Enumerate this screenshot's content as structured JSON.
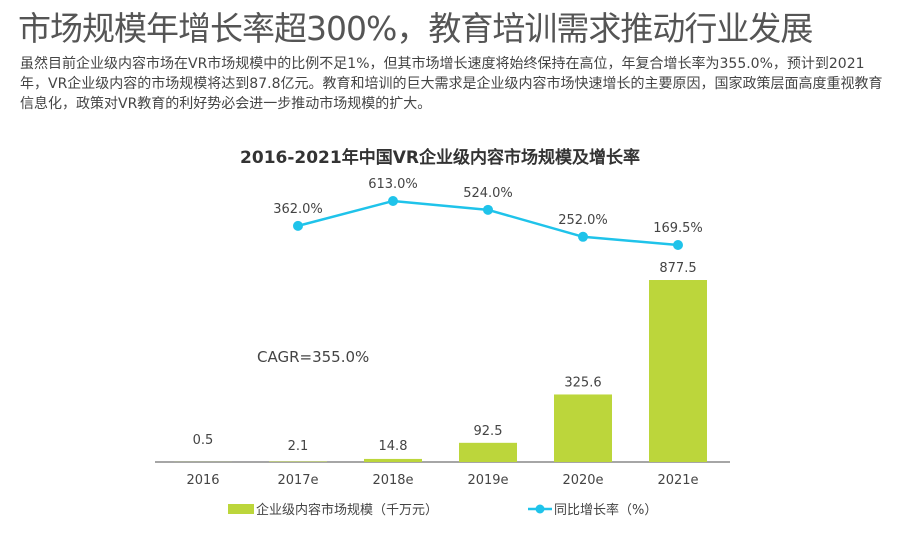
{
  "headline": "市场规模年增长率超300%，教育培训需求推动行业发展",
  "description": "虽然目前企业级内容市场在VR市场规模中的比例不足1%，但其市场增长速度将始终保持在高位，年复合增长率为355.0%，预计到2021年，VR企业级内容的市场规模将达到87.8亿元。教育和培训的巨大需求是企业级内容市场快速增长的主要原因，国家政策层面高度重视教育信息化，政策对VR教育的利好势必会进一步推动市场规模的扩大。",
  "chart_data": {
    "type": "bar+line",
    "title": "2016-2021年中国VR企业级内容市场规模及增长率",
    "categories": [
      "2016",
      "2017e",
      "2018e",
      "2019e",
      "2020e",
      "2021e"
    ],
    "series": [
      {
        "name": "企业级内容市场规模（千万元）",
        "type": "bar",
        "values": [
          0.5,
          2.1,
          14.8,
          92.5,
          325.6,
          877.5
        ],
        "labels": [
          "0.5",
          "2.1",
          "14.8",
          "92.5",
          "325.6",
          "877.5"
        ],
        "color": "#bcd63b"
      },
      {
        "name": "同比增长率（%）",
        "type": "line",
        "values": [
          null,
          362.0,
          613.0,
          524.0,
          252.0,
          169.5
        ],
        "labels": [
          "",
          "362.0%",
          "613.0%",
          "524.0%",
          "252.0%",
          "169.5%"
        ],
        "color": "#1fc3ea"
      }
    ],
    "annotation": "CAGR=355.0%",
    "legend_position": "bottom",
    "grid": false
  }
}
